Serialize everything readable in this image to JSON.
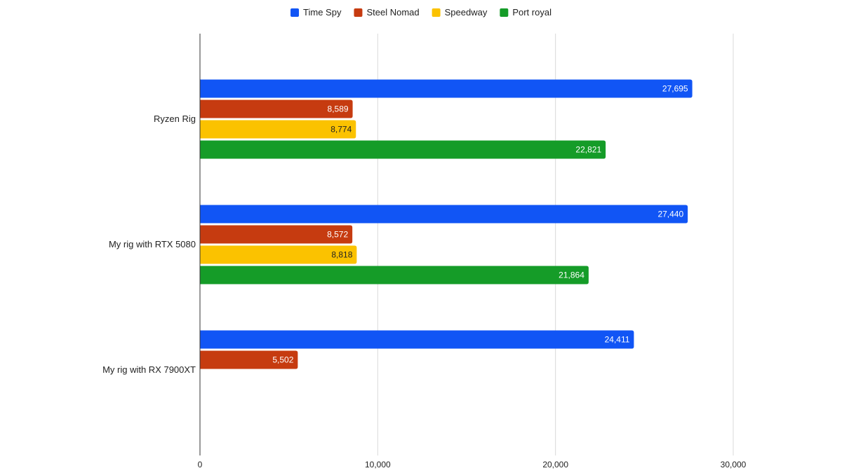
{
  "chart_data": {
    "type": "bar",
    "orientation": "horizontal",
    "categories": [
      "Ryzen Rig",
      "My rig with RTX 5080",
      "My rig with RX 7900XT"
    ],
    "series": [
      {
        "name": "Time Spy",
        "color": "#1155f5",
        "label_color": "#ffffff",
        "values": [
          27695,
          27440,
          24411
        ]
      },
      {
        "name": "Steel Nomad",
        "color": "#c63b10",
        "label_color": "#ffffff",
        "values": [
          8589,
          8572,
          5502
        ]
      },
      {
        "name": "Speedway",
        "color": "#fbc200",
        "label_color": "#222222",
        "values": [
          8774,
          8818,
          null
        ]
      },
      {
        "name": "Port royal",
        "color": "#159c28",
        "label_color": "#ffffff",
        "values": [
          22821,
          21864,
          null
        ]
      }
    ],
    "xlim": [
      0,
      30000
    ],
    "xticks": [
      0,
      10000,
      20000,
      30000
    ],
    "xtick_labels": [
      "0",
      "10,000",
      "20,000",
      "30,000"
    ],
    "data_labels": [
      [
        "27,695",
        "27,440",
        "24,411"
      ],
      [
        "8,589",
        "8,572",
        "5,502"
      ],
      [
        "8,774",
        "8,818",
        ""
      ],
      [
        "22,821",
        "21,864",
        ""
      ]
    ],
    "grid": true,
    "legend_position": "top-center",
    "title": "",
    "xlabel": "",
    "ylabel": ""
  }
}
